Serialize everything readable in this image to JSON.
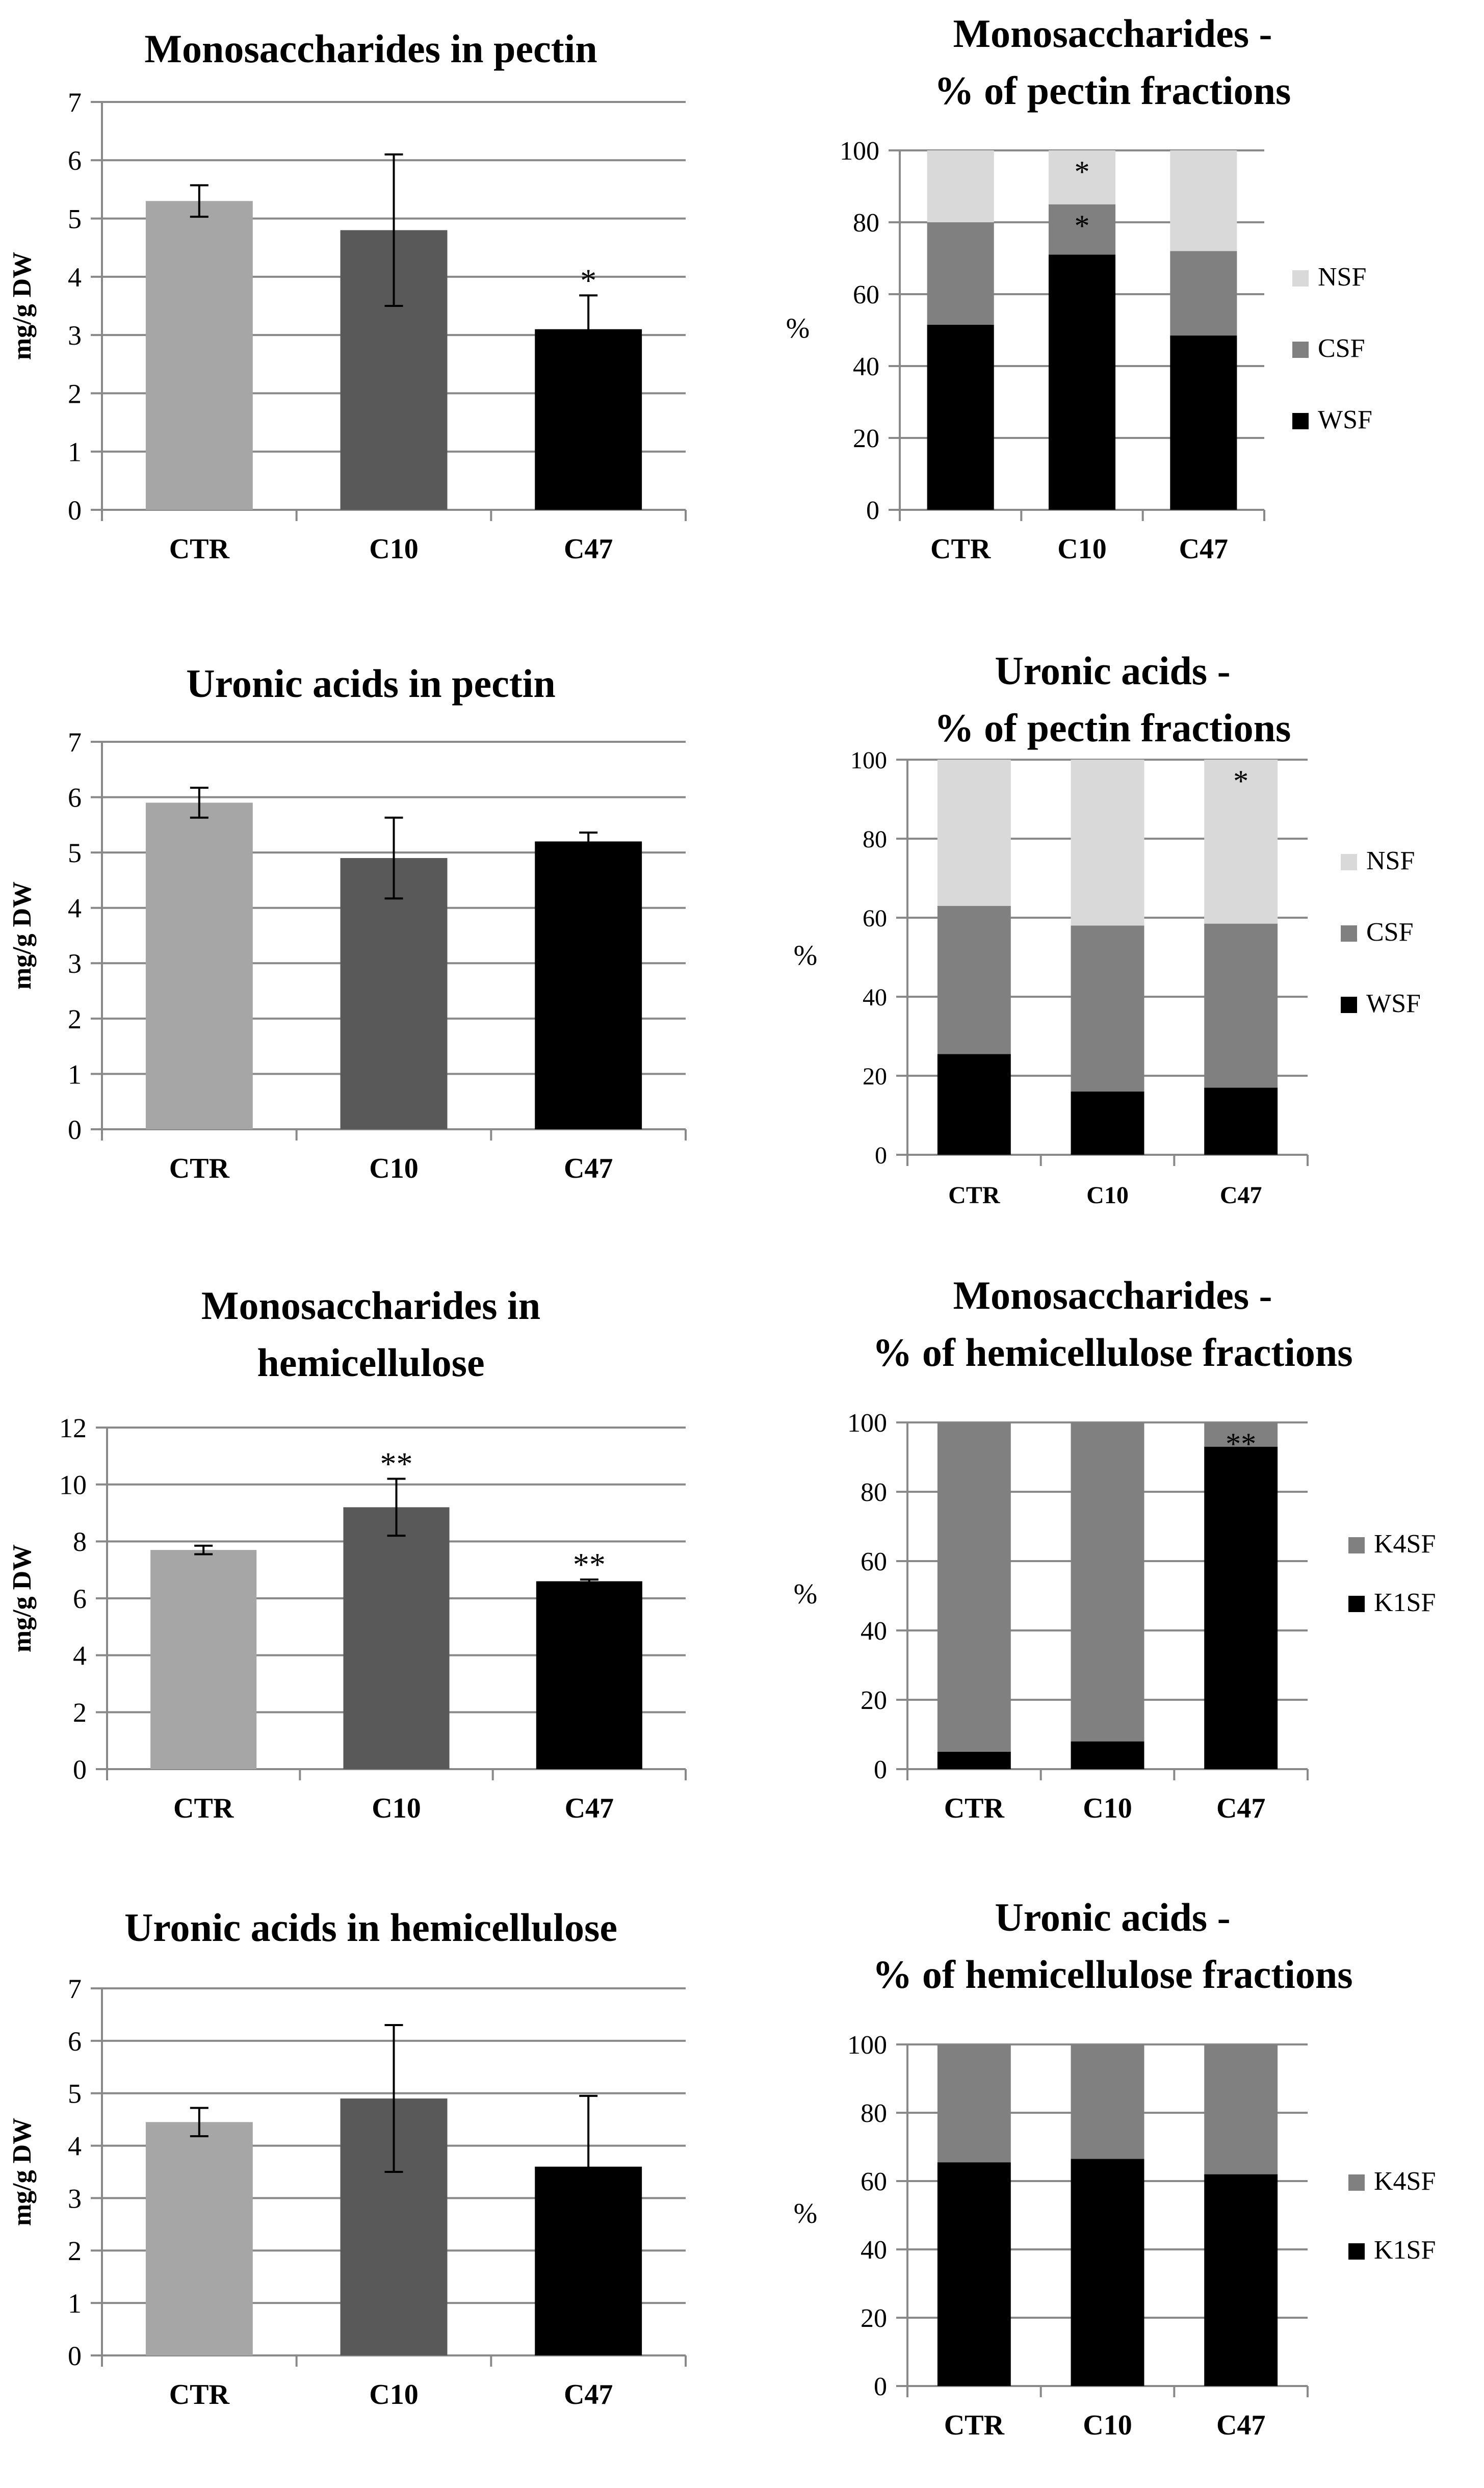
{
  "colors": {
    "CTR": "#a6a6a6",
    "C10": "#595959",
    "C47": "#000000",
    "NSF": "#d9d9d9",
    "CSF": "#808080",
    "WSF": "#000000",
    "K4SF": "#808080",
    "K1SF": "#000000",
    "grid": "#898989",
    "axis": "#898989"
  },
  "chart_data": [
    {
      "id": "mono-pectin",
      "type": "bar",
      "title_lines": [
        "Monosaccharides in pectin"
      ],
      "ylabel": "mg/g DW",
      "xlabel": "",
      "categories": [
        "CTR",
        "C10",
        "C47"
      ],
      "values": [
        5.3,
        4.8,
        3.1
      ],
      "errors": [
        0.27,
        1.3,
        0.58
      ],
      "annotations": [
        "",
        "",
        "*"
      ],
      "ylim": [
        0,
        7
      ],
      "yticks": [
        0,
        1,
        2,
        3,
        4,
        5,
        6,
        7
      ],
      "grid": true
    },
    {
      "id": "mono-pectin-pct",
      "type": "bar",
      "stacked": true,
      "title_lines": [
        "Monosaccharides -",
        "% of pectin fractions"
      ],
      "ylabel": "%",
      "categories": [
        "CTR",
        "C10",
        "C47"
      ],
      "series": [
        {
          "name": "WSF",
          "values": [
            51.5,
            71,
            48.5
          ]
        },
        {
          "name": "CSF",
          "values": [
            28.5,
            14,
            23.5
          ]
        },
        {
          "name": "NSF",
          "values": [
            20,
            15,
            28
          ]
        }
      ],
      "annotations": [
        {
          "category": "C10",
          "series": "CSF",
          "text": "*"
        },
        {
          "category": "C10",
          "series": "NSF",
          "text": "*"
        }
      ],
      "legend_order": [
        "NSF",
        "CSF",
        "WSF"
      ],
      "legend_position": "right",
      "ylim": [
        0,
        100
      ],
      "yticks": [
        0,
        20,
        40,
        60,
        80,
        100
      ],
      "grid": true
    },
    {
      "id": "uronic-pectin",
      "type": "bar",
      "title_lines": [
        "Uronic acids in pectin"
      ],
      "ylabel": "mg/g DW",
      "categories": [
        "CTR",
        "C10",
        "C47"
      ],
      "values": [
        5.9,
        4.9,
        5.2
      ],
      "errors": [
        0.27,
        0.73,
        0.16
      ],
      "annotations": [
        "",
        "",
        ""
      ],
      "ylim": [
        0,
        7
      ],
      "yticks": [
        0,
        1,
        2,
        3,
        4,
        5,
        6,
        7
      ],
      "grid": true
    },
    {
      "id": "uronic-pectin-pct",
      "type": "bar",
      "stacked": true,
      "title_lines": [
        "Uronic acids -",
        "% of pectin fractions"
      ],
      "ylabel": "%",
      "categories": [
        "CTR",
        "C10",
        "C47"
      ],
      "series": [
        {
          "name": "WSF",
          "values": [
            25.5,
            16,
            17
          ]
        },
        {
          "name": "CSF",
          "values": [
            37.5,
            42,
            41.5
          ]
        },
        {
          "name": "NSF",
          "values": [
            37,
            42,
            41.5
          ]
        }
      ],
      "annotations": [
        {
          "category": "C47",
          "series": "NSF",
          "text": "*"
        }
      ],
      "legend_order": [
        "NSF",
        "CSF",
        "WSF"
      ],
      "legend_position": "right",
      "ylim": [
        0,
        100
      ],
      "yticks": [
        0,
        20,
        40,
        60,
        80,
        100
      ],
      "grid": true
    },
    {
      "id": "mono-hemi",
      "type": "bar",
      "title_lines": [
        "Monosaccharides in",
        "hemicellulose"
      ],
      "ylabel": "mg/g DW",
      "categories": [
        "CTR",
        "C10",
        "C47"
      ],
      "values": [
        7.7,
        9.2,
        6.6
      ],
      "errors": [
        0.15,
        1.0,
        0.06
      ],
      "annotations": [
        "",
        "**",
        "**"
      ],
      "ylim": [
        0,
        12
      ],
      "yticks": [
        0,
        2,
        4,
        6,
        8,
        10,
        12
      ],
      "grid": true
    },
    {
      "id": "mono-hemi-pct",
      "type": "bar",
      "stacked": true,
      "title_lines": [
        "Monosaccharides -",
        "% of hemicellulose fractions"
      ],
      "ylabel": "%",
      "categories": [
        "CTR",
        "C10",
        "C47"
      ],
      "series": [
        {
          "name": "K1SF",
          "values": [
            5,
            8,
            93
          ]
        },
        {
          "name": "K4SF",
          "values": [
            95,
            92,
            7
          ]
        }
      ],
      "annotations": [
        {
          "category": "C47",
          "series": "K4SF",
          "text": "**"
        }
      ],
      "legend_order": [
        "K4SF",
        "K1SF"
      ],
      "legend_position": "right",
      "ylim": [
        0,
        100
      ],
      "yticks": [
        0,
        20,
        40,
        60,
        80,
        100
      ],
      "grid": true
    },
    {
      "id": "uronic-hemi",
      "type": "bar",
      "title_lines": [
        "Uronic acids in hemicellulose"
      ],
      "ylabel": "mg/g DW",
      "categories": [
        "CTR",
        "C10",
        "C47"
      ],
      "values": [
        4.45,
        4.9,
        3.6
      ],
      "errors": [
        0.27,
        1.4,
        1.35
      ],
      "annotations": [
        "",
        "",
        ""
      ],
      "ylim": [
        0,
        7
      ],
      "yticks": [
        0,
        1,
        2,
        3,
        4,
        5,
        6,
        7
      ],
      "grid": true
    },
    {
      "id": "uronic-hemi-pct",
      "type": "bar",
      "stacked": true,
      "title_lines": [
        "Uronic acids -",
        "% of hemicellulose fractions"
      ],
      "ylabel": "%",
      "categories": [
        "CTR",
        "C10",
        "C47"
      ],
      "series": [
        {
          "name": "K1SF",
          "values": [
            65.5,
            66.5,
            62
          ]
        },
        {
          "name": "K4SF",
          "values": [
            34.5,
            33.5,
            38
          ]
        }
      ],
      "annotations": [],
      "legend_order": [
        "K4SF",
        "K1SF"
      ],
      "legend_position": "right",
      "ylim": [
        0,
        100
      ],
      "yticks": [
        0,
        20,
        40,
        60,
        80,
        100
      ],
      "grid": true
    }
  ]
}
